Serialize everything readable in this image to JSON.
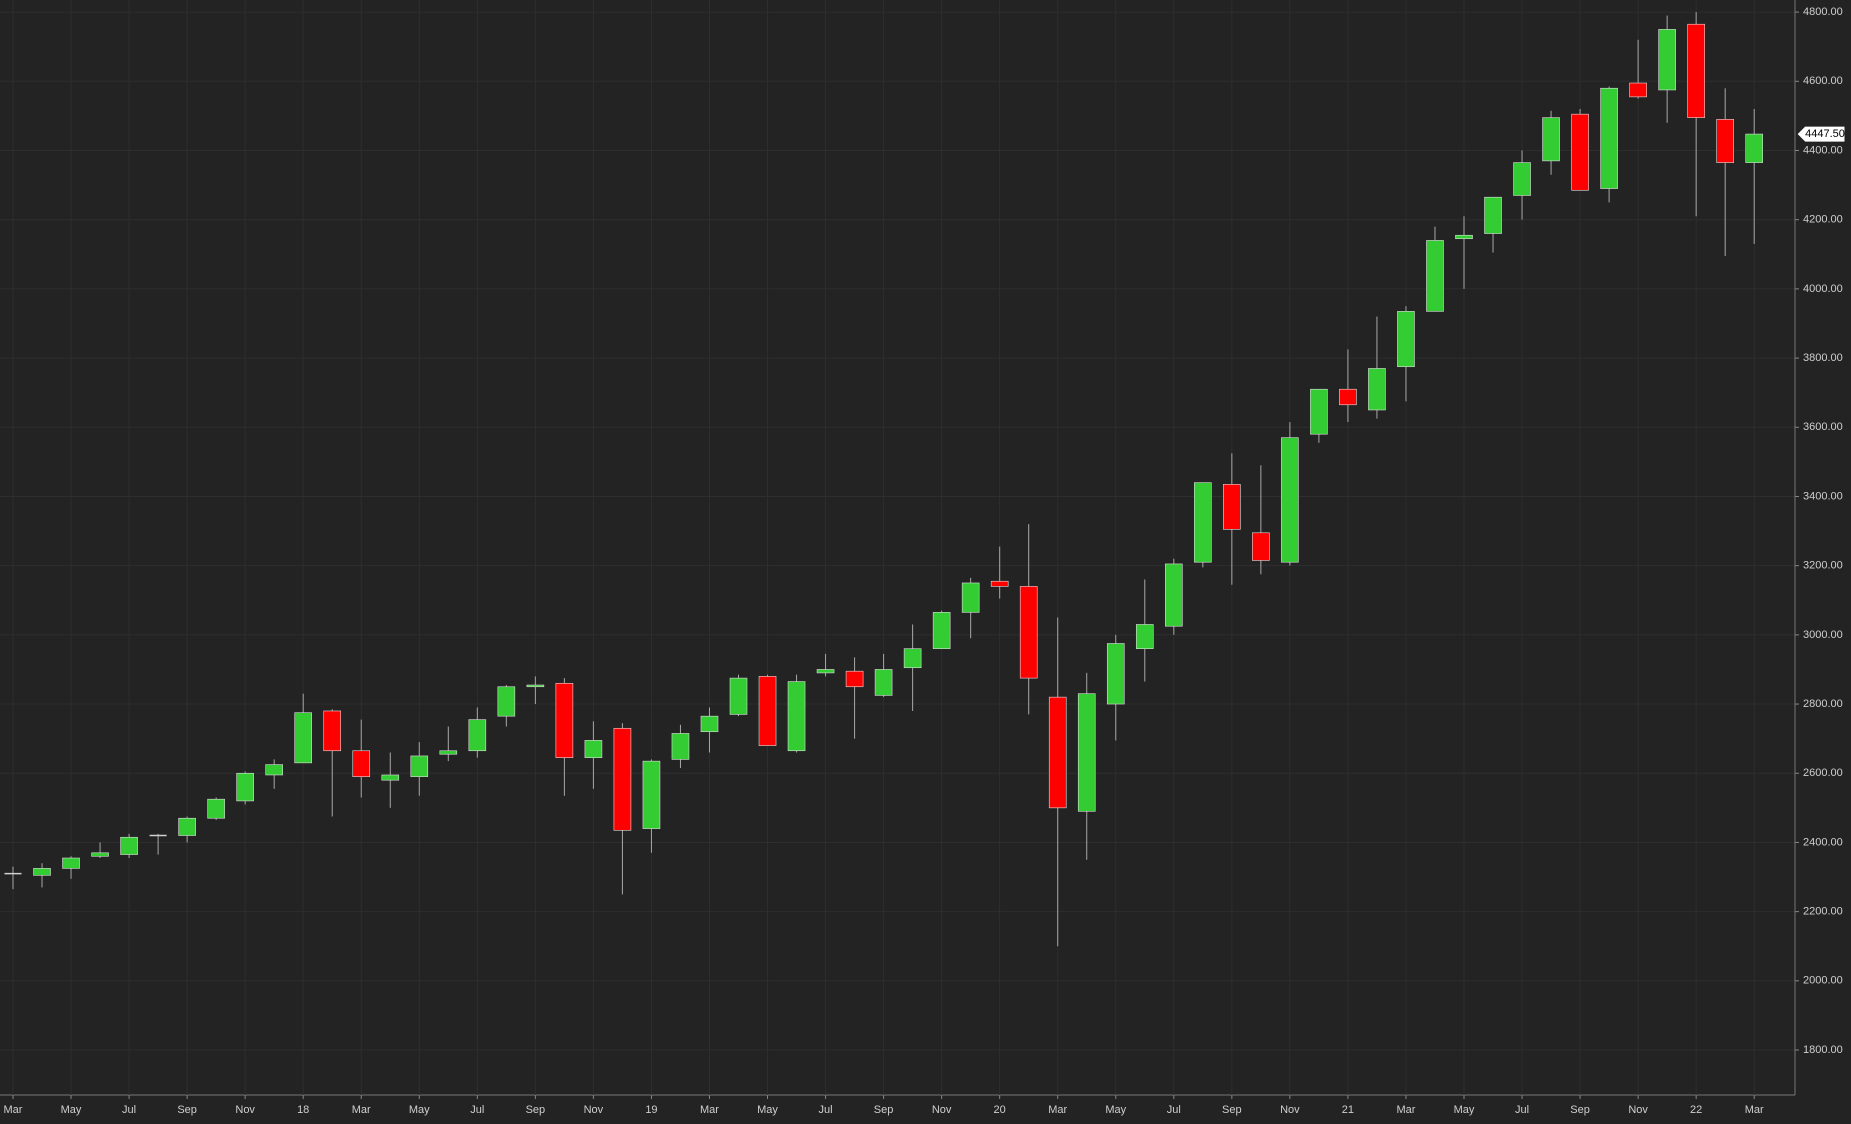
{
  "chart_data": {
    "type": "candlestick",
    "categories": [
      "Mar",
      null,
      "May",
      null,
      "Jul",
      null,
      "Sep",
      null,
      "Nov",
      null,
      "18",
      null,
      "Mar",
      null,
      "May",
      null,
      "Jul",
      null,
      "Sep",
      null,
      "Nov",
      null,
      "19",
      null,
      "Mar",
      null,
      "May",
      null,
      "Jul",
      null,
      "Sep",
      null,
      "Nov",
      null,
      "20",
      null,
      "Mar",
      null,
      "May",
      null,
      "Jul",
      null,
      "Sep",
      null,
      "Nov",
      null,
      "21",
      null,
      "Mar",
      null,
      "May",
      null,
      "Jul",
      null,
      "Sep",
      null,
      "Nov",
      null,
      "22",
      null,
      "Mar"
    ],
    "open": [
      2310,
      2305,
      2325,
      2360,
      2365,
      2420,
      2420,
      2470,
      2520,
      2595,
      2630,
      2780,
      2665,
      2580,
      2590,
      2655,
      2665,
      2765,
      2850,
      2860,
      2645,
      2730,
      2440,
      2640,
      2720,
      2770,
      2880,
      2665,
      2890,
      2895,
      2825,
      2905,
      2960,
      3065,
      3155,
      3140,
      2820,
      2490,
      2800,
      2960,
      3025,
      3210,
      3435,
      3295,
      3210,
      3580,
      3710,
      3650,
      3775,
      3935,
      4145,
      4160,
      4270,
      4370,
      4505,
      4290,
      4595,
      4575,
      4765,
      4490,
      4365
    ],
    "high": [
      2330,
      2340,
      2360,
      2400,
      2425,
      2425,
      2475,
      2530,
      2605,
      2640,
      2830,
      2785,
      2755,
      2660,
      2690,
      2735,
      2790,
      2855,
      2880,
      2875,
      2750,
      2745,
      2640,
      2740,
      2790,
      2885,
      2885,
      2885,
      2945,
      2935,
      2945,
      3030,
      3070,
      3165,
      3255,
      3320,
      3050,
      2890,
      3000,
      3160,
      3220,
      3440,
      3525,
      3490,
      3615,
      3710,
      3825,
      3920,
      3950,
      4180,
      4210,
      4265,
      4400,
      4515,
      4520,
      4585,
      4720,
      4790,
      4800,
      4580,
      4520
    ],
    "low": [
      2265,
      2270,
      2295,
      2355,
      2355,
      2365,
      2400,
      2465,
      2510,
      2555,
      2630,
      2475,
      2530,
      2500,
      2535,
      2635,
      2645,
      2735,
      2800,
      2535,
      2555,
      2250,
      2370,
      2615,
      2660,
      2765,
      2680,
      2660,
      2880,
      2700,
      2820,
      2780,
      2960,
      2990,
      3105,
      2770,
      2100,
      2350,
      2695,
      2865,
      3000,
      3195,
      3145,
      3175,
      3200,
      3555,
      3615,
      3625,
      3675,
      3935,
      4000,
      4105,
      4200,
      4330,
      4290,
      4250,
      4550,
      4480,
      4210,
      4095,
      4130
    ],
    "close": [
      2310,
      2325,
      2355,
      2370,
      2415,
      2420,
      2470,
      2525,
      2600,
      2625,
      2775,
      2665,
      2590,
      2595,
      2650,
      2665,
      2755,
      2850,
      2855,
      2645,
      2695,
      2435,
      2635,
      2715,
      2765,
      2875,
      2680,
      2865,
      2900,
      2850,
      2900,
      2960,
      3065,
      3150,
      3140,
      2875,
      2500,
      2830,
      2975,
      3030,
      3205,
      3440,
      3305,
      3215,
      3570,
      3710,
      3665,
      3770,
      3935,
      4140,
      4155,
      4265,
      4365,
      4495,
      4285,
      4580,
      4555,
      4750,
      4495,
      4365,
      4447.5
    ],
    "up_color": "#33cc33",
    "down_color": "#ff0000",
    "doji_color": "#d0d0d0",
    "last_label": "4447.50",
    "ylim": [
      1670,
      4835
    ],
    "yticks": [
      {
        "value": 1800,
        "label": "1800.00"
      },
      {
        "value": 2000,
        "label": "2000.00"
      },
      {
        "value": 2200,
        "label": "2200.00"
      },
      {
        "value": 2400,
        "label": "2400.00"
      },
      {
        "value": 2600,
        "label": "2600.00"
      },
      {
        "value": 2800,
        "label": "2800.00"
      },
      {
        "value": 3000,
        "label": "3000.00"
      },
      {
        "value": 3200,
        "label": "3200.00"
      },
      {
        "value": 3400,
        "label": "3400.00"
      },
      {
        "value": 3600,
        "label": "3600.00"
      },
      {
        "value": 3800,
        "label": "3800.00"
      },
      {
        "value": 4000,
        "label": "4000.00"
      },
      {
        "value": 4200,
        "label": "4200.00"
      },
      {
        "value": 4400,
        "label": "4400.00"
      },
      {
        "value": 4600,
        "label": "4600.00"
      },
      {
        "value": 4800,
        "label": "4800.00"
      }
    ],
    "grid": true
  }
}
